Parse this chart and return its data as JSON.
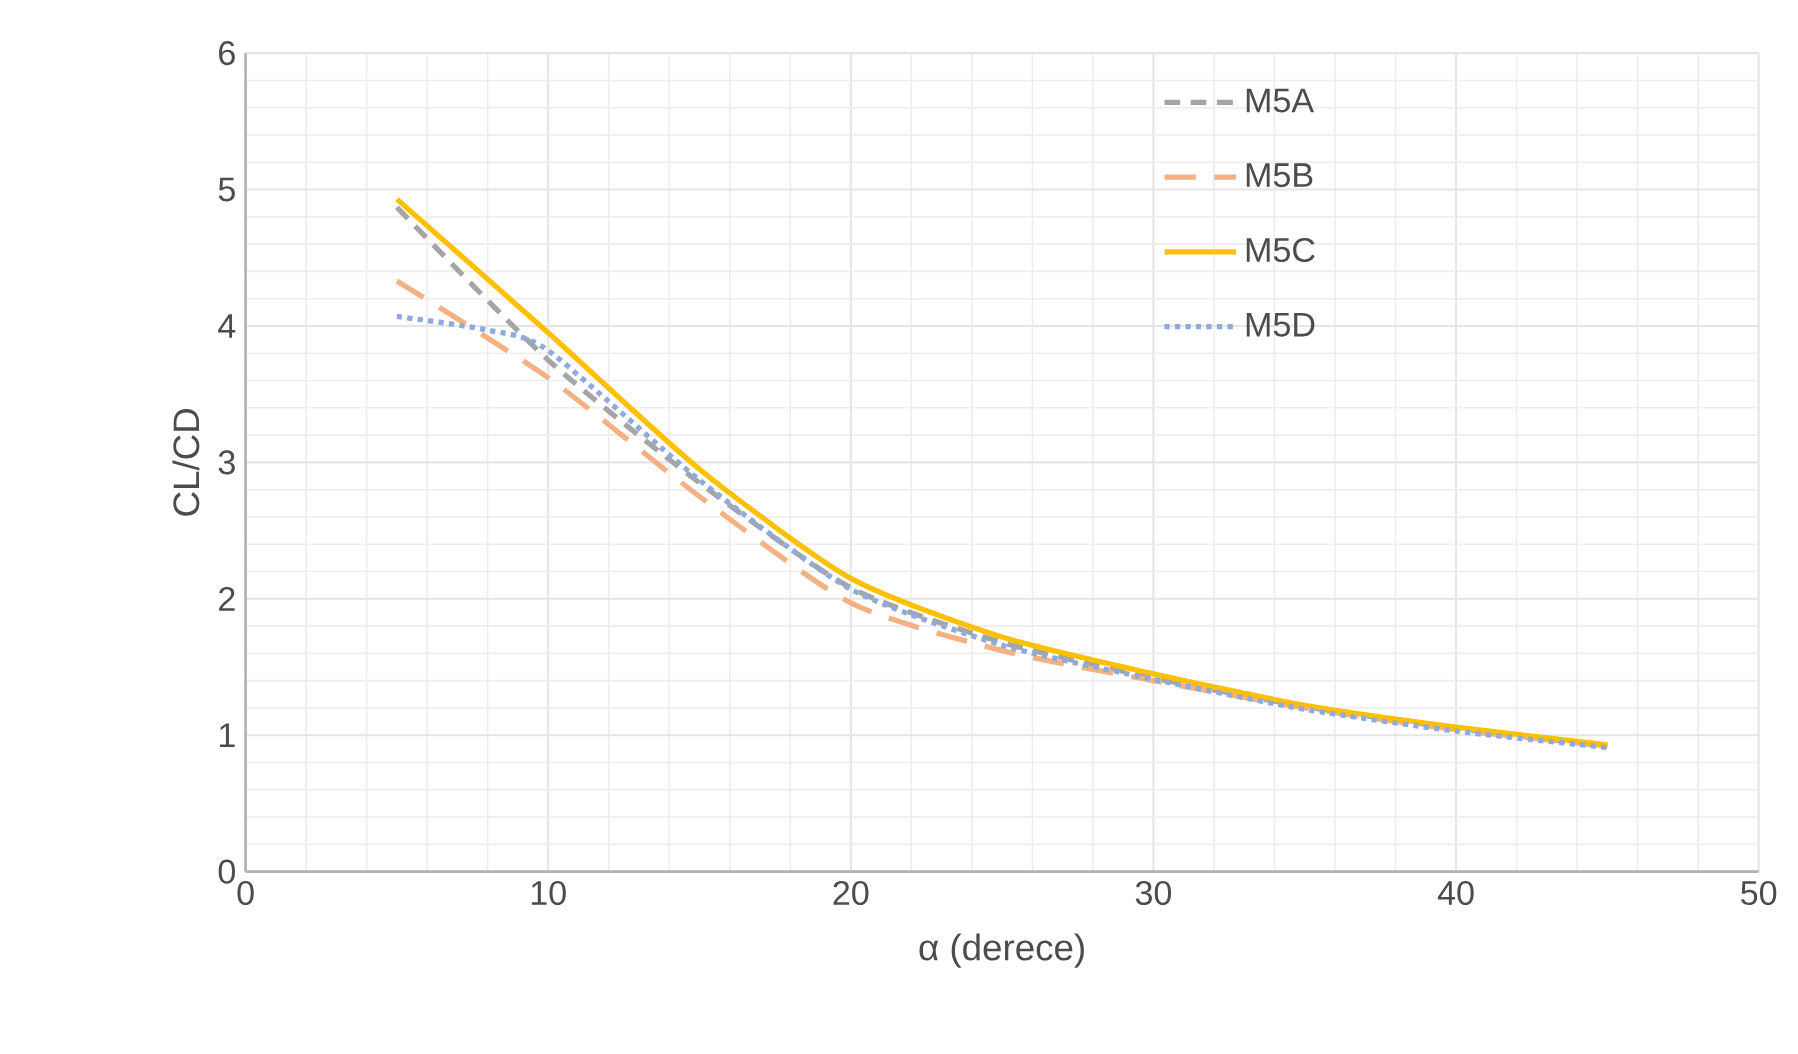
{
  "chart_data": {
    "type": "line",
    "xlabel": "α (derece)",
    "ylabel": "CL/CD",
    "x": [
      5,
      10,
      15,
      20,
      25,
      30,
      35,
      40,
      45
    ],
    "series": [
      {
        "name": "M5A",
        "color": "#a5a5a5",
        "line_style": "dashed",
        "values": [
          4.87,
          3.75,
          2.85,
          2.08,
          1.68,
          1.42,
          1.21,
          1.05,
          0.92
        ]
      },
      {
        "name": "M5B",
        "color": "#f4b183",
        "line_style": "dashed",
        "values": [
          4.33,
          3.62,
          2.75,
          1.97,
          1.62,
          1.4,
          1.2,
          1.04,
          0.92
        ]
      },
      {
        "name": "M5C",
        "color": "#ffc000",
        "line_style": "solid",
        "values": [
          4.93,
          3.95,
          2.95,
          2.15,
          1.72,
          1.45,
          1.22,
          1.06,
          0.93
        ]
      },
      {
        "name": "M5D",
        "color": "#8faadc",
        "line_style": "dotted",
        "x": [
          5,
          8,
          10,
          15,
          20,
          25,
          30,
          35,
          40,
          45
        ],
        "values": [
          4.07,
          3.97,
          3.82,
          2.87,
          2.07,
          1.66,
          1.41,
          1.19,
          1.03,
          0.91
        ]
      }
    ],
    "xlim": [
      0,
      50
    ],
    "xticks": [
      0,
      10,
      20,
      30,
      40,
      50
    ],
    "ylim": [
      0,
      6
    ],
    "yticks": [
      0,
      1,
      2,
      3,
      4,
      5,
      6
    ],
    "grid": true,
    "legend": "top right",
    "marker": "none"
  }
}
